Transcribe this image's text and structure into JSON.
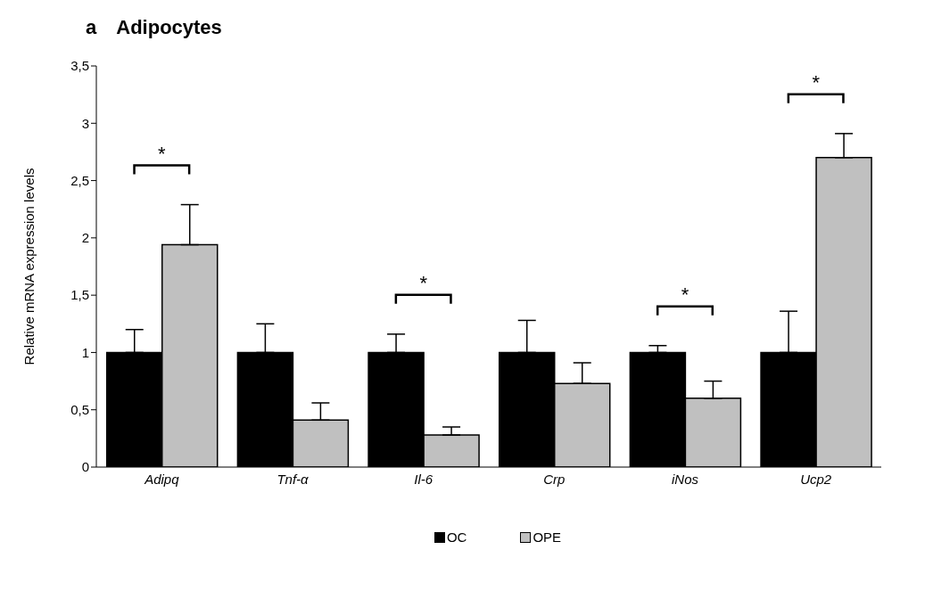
{
  "chart_data": {
    "type": "bar",
    "title": "Adipocytes",
    "ylabel": "Relative mRNA expression levels",
    "categories": [
      "Adipq",
      "Tnf-α",
      "Il-6",
      "Crp",
      "iNos",
      "Ucp2"
    ],
    "series": [
      {
        "name": "OC",
        "color": "#000000",
        "values": [
          1,
          1,
          1,
          1,
          1,
          1
        ],
        "errors": [
          [
            1,
            1.2
          ],
          [
            1,
            1.25
          ],
          [
            1,
            1.16
          ],
          [
            1,
            1.28
          ],
          [
            1,
            1.06
          ],
          [
            1,
            1.36
          ]
        ]
      },
      {
        "name": "OPE",
        "color": "#c0c0c0",
        "values": [
          1.94,
          0.41,
          0.28,
          0.73,
          0.6,
          2.7
        ],
        "errors": [
          [
            1.94,
            2.29
          ],
          [
            0.41,
            0.56
          ],
          [
            0.28,
            0.35
          ],
          [
            0.73,
            0.91
          ],
          [
            0.6,
            0.75
          ],
          [
            2.7,
            2.91
          ]
        ]
      }
    ],
    "ylim": [
      0,
      3.5
    ],
    "yticks": [
      0,
      {
        "value": 0.5,
        "label": "0,5"
      },
      1,
      {
        "value": 1.5,
        "label": "1,5"
      },
      2,
      {
        "value": 2.5,
        "label": "2,5"
      },
      3,
      {
        "value": 3.5,
        "label": "3,5"
      }
    ],
    "grid": false,
    "legend": "bottom",
    "annotations": [
      "a",
      "*",
      "*",
      "*",
      "*"
    ]
  }
}
